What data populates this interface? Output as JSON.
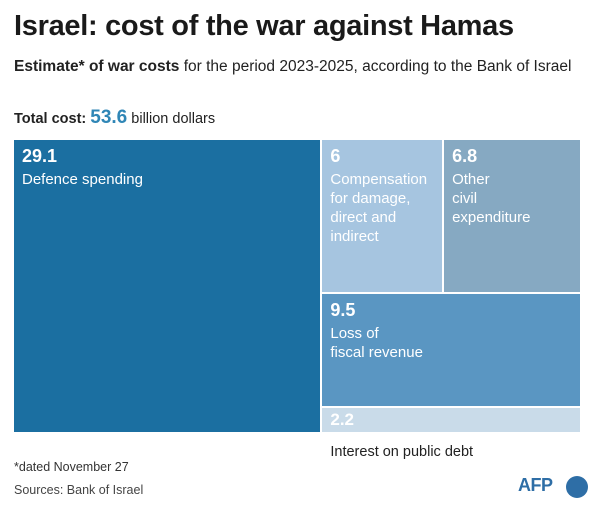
{
  "header": {
    "title": "Israel: cost of the war against Hamas",
    "subtitle_bold": "Estimate* of war costs",
    "subtitle_rest": " for the period 2023-2025, according to the Bank of Israel",
    "total_label": "Total cost:",
    "total_value": "53.6",
    "total_unit": " billion dollars"
  },
  "footer": {
    "footnote": "*dated November  27",
    "source": "Sources: Bank of Israel",
    "logo": "AFP"
  },
  "colors": {
    "defence": "#1b6fa1",
    "compensation": "#a6c5e0",
    "civil": "#86a9c2",
    "revenue": "#5a96c2",
    "interest": "#c9dbe9"
  },
  "chart_data": {
    "type": "treemap",
    "total": 53.6,
    "unit": "billion dollars",
    "items": [
      {
        "value": 29.1,
        "label": "Defence spending"
      },
      {
        "value": 6,
        "label": "Compensation\nfor damage,\ndirect and\nindirect"
      },
      {
        "value": 6.8,
        "label": "Other\ncivil\nexpenditure"
      },
      {
        "value": 9.5,
        "label": "Loss of\nfiscal revenue"
      },
      {
        "value": 2.2,
        "label": "Interest on public debt"
      }
    ]
  }
}
